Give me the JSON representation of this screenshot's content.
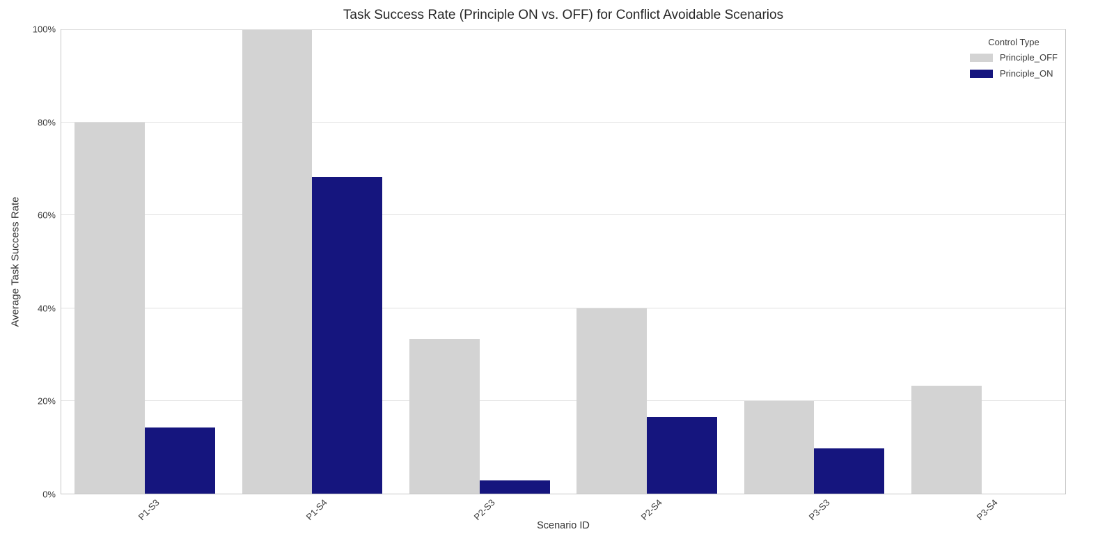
{
  "chart_data": {
    "type": "bar",
    "title": "Task Success Rate (Principle ON vs. OFF) for Conflict Avoidable Scenarios",
    "xlabel": "Scenario ID",
    "ylabel": "Average Task Success Rate",
    "categories": [
      "P1-S3",
      "P1-S4",
      "P2-S3",
      "P2-S4",
      "P3-S3",
      "P3-S4"
    ],
    "series": [
      {
        "name": "Principle_OFF",
        "color": "#d3d3d3",
        "values": [
          80,
          100,
          33.3,
          40,
          20,
          23.3
        ]
      },
      {
        "name": "Principle_ON",
        "color": "#15157e",
        "values": [
          14.2,
          68.3,
          2.9,
          16.5,
          9.7,
          0
        ]
      }
    ],
    "ylim": [
      0,
      100
    ],
    "yticks": [
      0,
      20,
      40,
      60,
      80,
      100
    ],
    "ytick_labels": [
      "0%",
      "20%",
      "40%",
      "60%",
      "80%",
      "100%"
    ],
    "grid": "horizontal",
    "legend_position": "top-right"
  },
  "legend": {
    "title": "Control Type",
    "items": [
      {
        "label": "Principle_OFF",
        "color": "#d3d3d3"
      },
      {
        "label": "Principle_ON",
        "color": "#15157e"
      }
    ]
  }
}
